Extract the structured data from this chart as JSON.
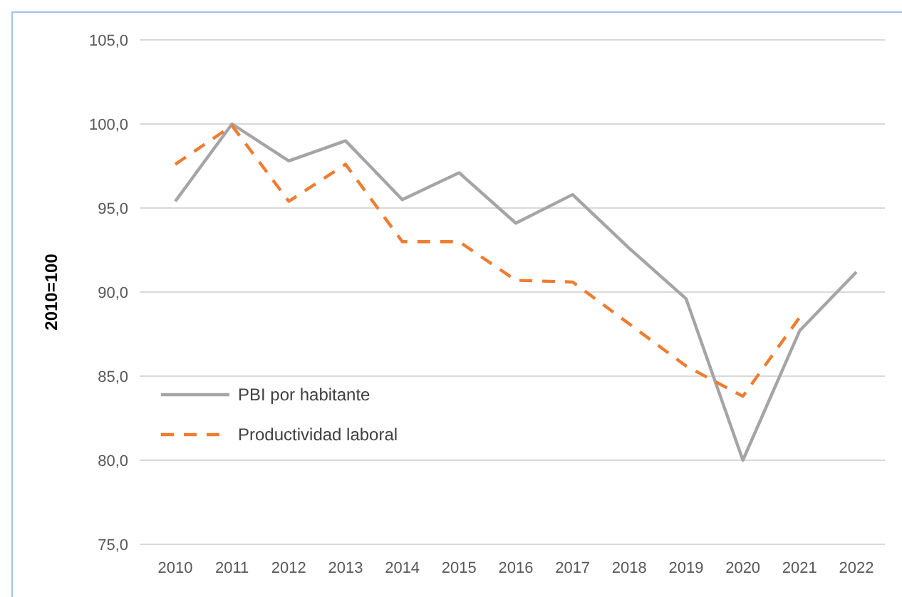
{
  "chart_data": {
    "type": "line",
    "ylabel": "2010=100",
    "categories": [
      "2010",
      "2011",
      "2012",
      "2013",
      "2014",
      "2015",
      "2016",
      "2017",
      "2018",
      "2019",
      "2020",
      "2021",
      "2022"
    ],
    "series": [
      {
        "name": "PBI por habitante",
        "color": "#a5a5a5",
        "line_style": "solid",
        "values": [
          95.4,
          100,
          97.8,
          99.0,
          95.5,
          97.1,
          94.1,
          95.8,
          92.6,
          89.6,
          80.0,
          87.7,
          91.2
        ]
      },
      {
        "name": "Productividad laboral",
        "color": "#ed7d31",
        "line_style": "dashed",
        "values": [
          97.6,
          99.9,
          95.4,
          97.6,
          93.0,
          93.0,
          90.7,
          90.6,
          88.1,
          85.6,
          83.8,
          88.5,
          null
        ]
      }
    ],
    "ylim": [
      75,
      105
    ],
    "yticks": [
      {
        "value": 75,
        "label": "75,0"
      },
      {
        "value": 80,
        "label": "80,0"
      },
      {
        "value": 85,
        "label": "85,0"
      },
      {
        "value": 90,
        "label": "90,0"
      },
      {
        "value": 95,
        "label": "95,0"
      },
      {
        "value": 100,
        "label": "100,0"
      },
      {
        "value": 105,
        "label": "105,0"
      }
    ],
    "grid": "y",
    "legend": "bottom left"
  }
}
